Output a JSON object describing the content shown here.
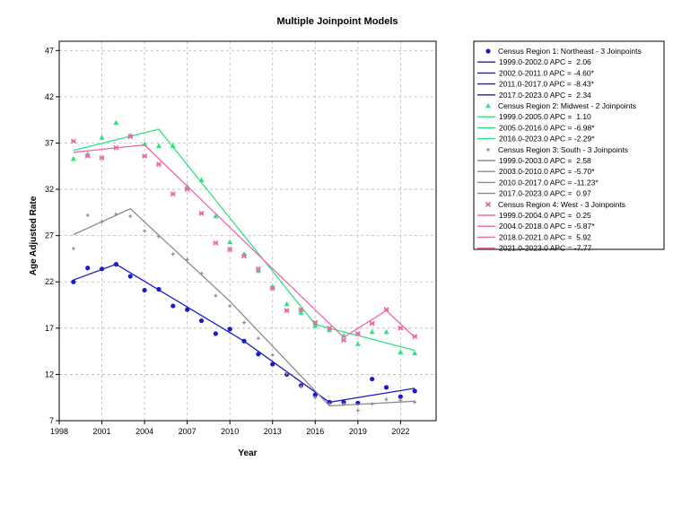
{
  "chart_data": {
    "type": "line",
    "title": "Multiple Joinpoint Models",
    "xlabel": "Year",
    "ylabel": "Age Adjusted Rate",
    "xlim": [
      1998,
      2024.5
    ],
    "ylim": [
      7,
      48
    ],
    "xticks": [
      "1998",
      "2001",
      "2004",
      "2007",
      "2010",
      "2013",
      "2016",
      "2019",
      "2022"
    ],
    "yticks": [
      "7",
      "12",
      "17",
      "22",
      "27",
      "32",
      "37",
      "42",
      "47"
    ],
    "grid": true,
    "legend_position": "right",
    "series": [
      {
        "name": "Census Region 1: Northeast - 3 Joinpoints",
        "color": "#1a1acc",
        "marker": "circle",
        "x": [
          1999,
          2000,
          2001,
          2002,
          2003,
          2004,
          2005,
          2006,
          2007,
          2008,
          2009,
          2010,
          2011,
          2012,
          2013,
          2014,
          2015,
          2016,
          2017,
          2018,
          2019,
          2020,
          2021,
          2022,
          2023
        ],
        "observed": [
          22.0,
          23.5,
          23.4,
          23.9,
          22.6,
          21.1,
          21.2,
          19.4,
          19.0,
          17.8,
          16.4,
          16.9,
          15.6,
          14.2,
          13.1,
          12.0,
          10.8,
          9.8,
          9.0,
          9.0,
          8.9,
          11.5,
          10.6,
          9.6,
          10.2
        ],
        "fit": [
          [
            1999,
            22.2
          ],
          [
            2002,
            23.9
          ],
          [
            2011,
            15.6
          ],
          [
            2017,
            9.0
          ],
          [
            2023,
            10.5
          ]
        ],
        "segments": [
          {
            "label": "1999.0-2002.0 APC =  2.06"
          },
          {
            "label": "2002.0-2011.0 APC = -4.60*"
          },
          {
            "label": "2011.0-2017.0 APC = -8.43*"
          },
          {
            "label": "2017.0-2023.0 APC =  2.34"
          }
        ]
      },
      {
        "name": "Census Region 2: Midwest - 2 Joinpoints",
        "color": "#33e080",
        "marker": "triangle",
        "x": [
          1999,
          2000,
          2001,
          2002,
          2003,
          2004,
          2005,
          2006,
          2007,
          2008,
          2009,
          2010,
          2011,
          2012,
          2013,
          2014,
          2015,
          2016,
          2017,
          2018,
          2019,
          2020,
          2021,
          2022,
          2023
        ],
        "observed": [
          35.3,
          35.8,
          37.6,
          39.2,
          37.8,
          36.9,
          36.7,
          36.7,
          32.3,
          33.0,
          29.1,
          26.3,
          25.0,
          23.2,
          21.5,
          19.6,
          18.7,
          17.3,
          16.8,
          16.2,
          15.3,
          16.6,
          16.6,
          14.4,
          14.3
        ],
        "fit": [
          [
            1999,
            36.2
          ],
          [
            2005,
            38.5
          ],
          [
            2016,
            17.4
          ],
          [
            2023,
            14.6
          ]
        ],
        "segments": [
          {
            "label": "1999.0-2005.0 APC =  1.10"
          },
          {
            "label": "2005.0-2016.0 APC = -6.98*"
          },
          {
            "label": "2016.0-2023.0 APC = -2.29*"
          }
        ]
      },
      {
        "name": "Census Region 3: South - 3 Joinpoints",
        "color": "#8c8c8c",
        "marker": "star",
        "x": [
          1999,
          2000,
          2001,
          2002,
          2003,
          2004,
          2005,
          2006,
          2007,
          2008,
          2009,
          2010,
          2011,
          2012,
          2013,
          2014,
          2015,
          2016,
          2017,
          2018,
          2019,
          2020,
          2021,
          2022,
          2023
        ],
        "observed": [
          25.6,
          29.2,
          28.5,
          29.3,
          29.1,
          27.5,
          26.9,
          25.0,
          24.4,
          22.9,
          20.5,
          19.4,
          17.6,
          15.9,
          14.1,
          12.1,
          10.7,
          9.5,
          8.8,
          8.8,
          8.1,
          8.8,
          9.3,
          9.2,
          9.0
        ],
        "fit": [
          [
            1999,
            27.1
          ],
          [
            2003,
            29.9
          ],
          [
            2010,
            19.9
          ],
          [
            2017,
            8.6
          ],
          [
            2023,
            9.1
          ]
        ],
        "segments": [
          {
            "label": "1999.0-2003.0 APC =  2.58"
          },
          {
            "label": "2003.0-2010.0 APC = -5.70*"
          },
          {
            "label": "2010.0-2017.0 APC = -11.23*"
          },
          {
            "label": "2017.0-2023.0 APC =  0.97"
          }
        ]
      },
      {
        "name": "Census Region 4: West - 3 Joinpoints",
        "color": "#ee66aa",
        "marker": "square",
        "x": [
          1999,
          2000,
          2001,
          2002,
          2003,
          2004,
          2005,
          2006,
          2007,
          2008,
          2009,
          2010,
          2011,
          2012,
          2013,
          2014,
          2015,
          2016,
          2017,
          2018,
          2019,
          2020,
          2021,
          2022,
          2023
        ],
        "observed": [
          37.2,
          35.6,
          35.4,
          36.5,
          37.7,
          35.6,
          34.7,
          31.5,
          32.0,
          29.4,
          26.2,
          25.5,
          24.8,
          23.4,
          21.3,
          18.9,
          19.0,
          17.6,
          17.0,
          15.7,
          16.4,
          17.5,
          19.0,
          17.0,
          16.1
        ],
        "fit": [
          [
            1999,
            36.0
          ],
          [
            2004,
            36.8
          ],
          [
            2018,
            16.0
          ],
          [
            2021,
            18.9
          ],
          [
            2023,
            16.0
          ]
        ],
        "segments": [
          {
            "label": "1999.0-2004.0 APC =  0.25"
          },
          {
            "label": "2004.0-2018.0 APC = -5.87*"
          },
          {
            "label": "2018.0-2021.0 APC =  5.92"
          },
          {
            "label": "2021.0-2023.0 APC = -7.77"
          }
        ]
      }
    ]
  }
}
